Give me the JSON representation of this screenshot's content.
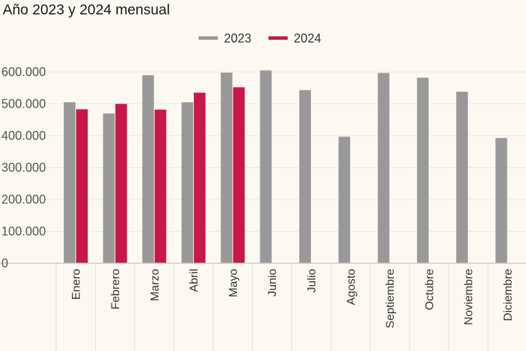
{
  "chart_data": {
    "type": "bar",
    "title": "Año 2023 y 2024 mensual",
    "categories": [
      "Enero",
      "Febrero",
      "Marzo",
      "Abril",
      "Mayo",
      "Junio",
      "Julio",
      "Agosto",
      "Septiembre",
      "Octubre",
      "Noviembre",
      "Diciembre"
    ],
    "series": [
      {
        "name": "2023",
        "color": "#999999",
        "values": [
          505000,
          470000,
          590000,
          505000,
          598000,
          605000,
          543000,
          397000,
          597000,
          582000,
          538000,
          393000
        ]
      },
      {
        "name": "2024",
        "color": "#c8174b",
        "values": [
          483000,
          500000,
          482000,
          535000,
          552000,
          null,
          null,
          null,
          null,
          null,
          null,
          null
        ]
      }
    ],
    "yticks": [
      0,
      100000,
      200000,
      300000,
      400000,
      500000,
      600000
    ],
    "ytick_labels": [
      "0",
      "100.000",
      "200.000",
      "300.000",
      "400.000",
      "500.000",
      "600.000"
    ],
    "ylim": [
      0,
      640000
    ],
    "xlabel": "",
    "ylabel": "",
    "grid": true,
    "legend_position": "top-center"
  }
}
